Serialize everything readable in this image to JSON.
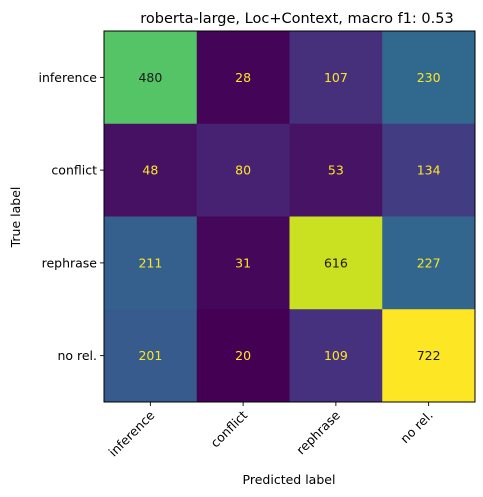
{
  "chart_data": {
    "type": "heatmap",
    "title": "roberta-large, Loc+Context, macro f1: 0.53",
    "xlabel": "Predicted label",
    "ylabel": "True label",
    "x_categories": [
      "inference",
      "conflict",
      "rephrase",
      "no rel."
    ],
    "y_categories": [
      "inference",
      "conflict",
      "rephrase",
      "no rel."
    ],
    "values": [
      [
        480,
        28,
        107,
        230
      ],
      [
        48,
        80,
        53,
        134
      ],
      [
        211,
        31,
        616,
        227
      ],
      [
        201,
        20,
        109,
        722
      ]
    ],
    "colormap": "viridis",
    "vmin": 20,
    "vmax": 722,
    "text_colors": {
      "dark_cell": "#fde725",
      "light_cell": "#1a1a1a"
    }
  }
}
